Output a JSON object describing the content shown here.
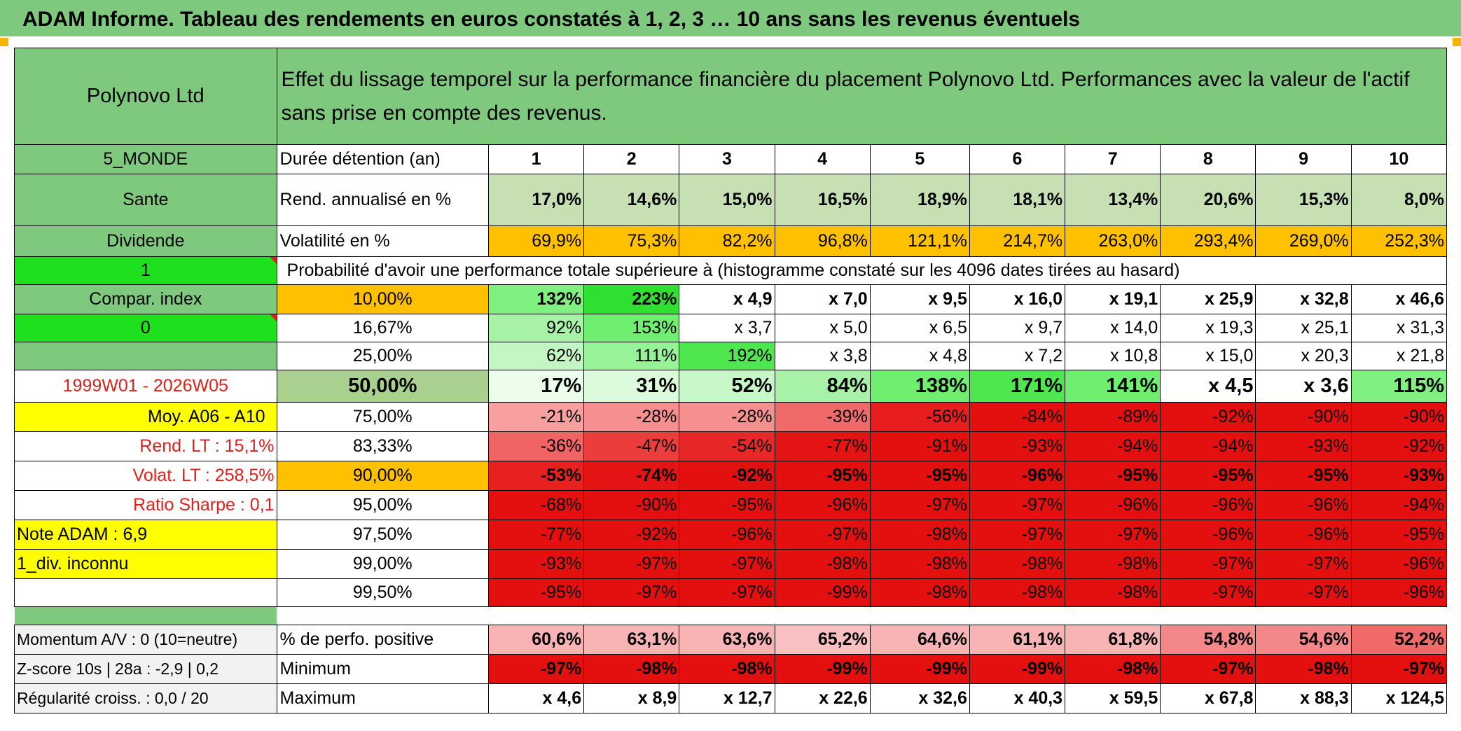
{
  "banner": "ADAM Informe. Tableau des rendements en euros constatés à 1, 2, 3 … 10 ans sans les revenus éventuels",
  "name": "Polynovo Ltd",
  "description": "Effet du lissage temporel sur la performance financière du placement Polynovo Ltd. Performances avec la valeur de l'actif sans prise en compte des revenus.",
  "side": {
    "zone": "5_MONDE",
    "sector": "Sante",
    "type": "Dividende",
    "one": "1",
    "compar": "Compar. index",
    "zero": "0",
    "period": "1999W01 - 2026W05",
    "moy": "Moy. A06 - A10",
    "rend_lt": "Rend. LT :    15,1%",
    "volat_lt": "Volat. LT :   258,5%",
    "sharpe": "Ratio Sharpe :    0,1",
    "note": "Note ADAM : 6,9",
    "div": "1_div. inconnu",
    "momentum": "Momentum A/V : 0 (10=neutre)",
    "zscore": "Z-score 10s | 28a : -2,9 | 0,2",
    "regularite": "Régularité croiss. : 0,0 / 20"
  },
  "labels": {
    "duree": "Durée détention (an)",
    "rend": "Rend. annualisé en %",
    "vol": "Volatilité en %",
    "prob": "Probabilité d'avoir une performance totale supérieure à (histogramme constaté sur les 4096 dates tirées au hasard)",
    "pos": "% de perfo. positive",
    "min": "Minimum",
    "max": "Maximum"
  },
  "years": [
    "1",
    "2",
    "3",
    "4",
    "5",
    "6",
    "7",
    "8",
    "9",
    "10"
  ],
  "rend": [
    "17,0%",
    "14,6%",
    "15,0%",
    "16,5%",
    "18,9%",
    "18,1%",
    "13,4%",
    "20,6%",
    "15,3%",
    "8,0%"
  ],
  "vol": [
    "69,9%",
    "75,3%",
    "82,2%",
    "96,8%",
    "121,1%",
    "214,7%",
    "263,0%",
    "293,4%",
    "269,0%",
    "252,3%"
  ],
  "quantiles": [
    {
      "p": "10,00%",
      "v": [
        "132%",
        "223%",
        "x 4,9",
        "x 7,0",
        "x 9,5",
        "x 16,0",
        "x 19,1",
        "x 25,9",
        "x 32,8",
        "x 46,6"
      ],
      "bg": [
        "#80f080",
        "#30e030",
        "#ffffff",
        "#ffffff",
        "#ffffff",
        "#ffffff",
        "#ffffff",
        "#ffffff",
        "#ffffff",
        "#ffffff"
      ]
    },
    {
      "p": "16,67%",
      "v": [
        "92%",
        "153%",
        "x 3,7",
        "x 5,0",
        "x 6,5",
        "x 9,7",
        "x 14,0",
        "x 19,3",
        "x 25,1",
        "x 31,3"
      ],
      "bg": [
        "#a8f2a8",
        "#70ee70",
        "#ffffff",
        "#ffffff",
        "#ffffff",
        "#ffffff",
        "#ffffff",
        "#ffffff",
        "#ffffff",
        "#ffffff"
      ]
    },
    {
      "p": "25,00%",
      "v": [
        "62%",
        "111%",
        "192%",
        "x 3,8",
        "x 4,8",
        "x 7,2",
        "x 10,8",
        "x 15,0",
        "x 20,3",
        "x 21,8"
      ],
      "bg": [
        "#c4f6c4",
        "#98f298",
        "#50e650",
        "#ffffff",
        "#ffffff",
        "#ffffff",
        "#ffffff",
        "#ffffff",
        "#ffffff",
        "#ffffff"
      ]
    },
    {
      "p": "50,00%",
      "v": [
        "17%",
        "31%",
        "52%",
        "84%",
        "138%",
        "171%",
        "141%",
        "x 4,5",
        "x 3,6",
        "115%"
      ],
      "bg": [
        "#ecfdec",
        "#dcfadc",
        "#c8f7c8",
        "#a8f2a8",
        "#70ee70",
        "#50e650",
        "#70ee70",
        "#ffffff",
        "#ffffff",
        "#80f080"
      ]
    },
    {
      "p": "75,00%",
      "v": [
        "-21%",
        "-28%",
        "-28%",
        "-39%",
        "-56%",
        "-84%",
        "-89%",
        "-92%",
        "-90%",
        "-90%"
      ],
      "bg": [
        "#f8a0a0",
        "#f69090",
        "#f69090",
        "#f06a6a",
        "#e81d1d",
        "#e41010",
        "#e41010",
        "#e41010",
        "#e41010",
        "#e41010"
      ]
    },
    {
      "p": "83,33%",
      "v": [
        "-36%",
        "-47%",
        "-54%",
        "-77%",
        "-91%",
        "-93%",
        "-94%",
        "-94%",
        "-93%",
        "-92%"
      ],
      "bg": [
        "#f06464",
        "#ec3c3c",
        "#e82828",
        "#e41414",
        "#e41010",
        "#e41010",
        "#e41010",
        "#e41010",
        "#e41010",
        "#e41010"
      ]
    },
    {
      "p": "90,00%",
      "v": [
        "-53%",
        "-74%",
        "-92%",
        "-95%",
        "-95%",
        "-96%",
        "-95%",
        "-95%",
        "-95%",
        "-93%"
      ],
      "bg": [
        "#e82020",
        "#e41414",
        "#e41010",
        "#e41010",
        "#e41010",
        "#e41010",
        "#e41010",
        "#e41010",
        "#e41010",
        "#e41010"
      ]
    },
    {
      "p": "95,00%",
      "v": [
        "-68%",
        "-90%",
        "-95%",
        "-96%",
        "-97%",
        "-97%",
        "-96%",
        "-96%",
        "-96%",
        "-94%"
      ],
      "bg": [
        "#e41010",
        "#e41010",
        "#e41010",
        "#e41010",
        "#e41010",
        "#e41010",
        "#e41010",
        "#e41010",
        "#e41010",
        "#e41010"
      ]
    },
    {
      "p": "97,50%",
      "v": [
        "-77%",
        "-92%",
        "-96%",
        "-97%",
        "-98%",
        "-97%",
        "-97%",
        "-96%",
        "-96%",
        "-95%"
      ],
      "bg": [
        "#e41010",
        "#e41010",
        "#e41010",
        "#e41010",
        "#e41010",
        "#e41010",
        "#e41010",
        "#e41010",
        "#e41010",
        "#e41010"
      ]
    },
    {
      "p": "99,00%",
      "v": [
        "-93%",
        "-97%",
        "-97%",
        "-98%",
        "-98%",
        "-98%",
        "-98%",
        "-97%",
        "-97%",
        "-96%"
      ],
      "bg": [
        "#e41010",
        "#e41010",
        "#e41010",
        "#e41010",
        "#e41010",
        "#e41010",
        "#e41010",
        "#e41010",
        "#e41010",
        "#e41010"
      ]
    },
    {
      "p": "99,50%",
      "v": [
        "-95%",
        "-97%",
        "-97%",
        "-99%",
        "-98%",
        "-98%",
        "-98%",
        "-97%",
        "-97%",
        "-96%"
      ],
      "bg": [
        "#e41010",
        "#e41010",
        "#e41010",
        "#e41010",
        "#e41010",
        "#e41010",
        "#e41010",
        "#e41010",
        "#e41010",
        "#e41010"
      ]
    }
  ],
  "pos": [
    "60,6%",
    "63,1%",
    "63,6%",
    "65,2%",
    "64,6%",
    "61,1%",
    "61,8%",
    "54,8%",
    "54,6%",
    "52,2%"
  ],
  "pos_bg": [
    "#f8b4b4",
    "#f8b4b4",
    "#f8b4b4",
    "#f8c0c0",
    "#f8b4b4",
    "#f8b4b4",
    "#f8b4b4",
    "#f48888",
    "#f48888",
    "#f06a6a"
  ],
  "min": [
    "-97%",
    "-98%",
    "-98%",
    "-99%",
    "-99%",
    "-99%",
    "-98%",
    "-97%",
    "-98%",
    "-97%"
  ],
  "max": [
    "x 4,6",
    "x 8,9",
    "x 12,7",
    "x 22,6",
    "x 32,6",
    "x 40,3",
    "x 59,5",
    "x 67,8",
    "x 88,3",
    "x 124,5"
  ],
  "colors": {
    "green": "#7fc97f",
    "bright_green": "#1fe01f",
    "yellow": "#ffff00",
    "orange": "#ffc000",
    "red": "#e41010"
  }
}
